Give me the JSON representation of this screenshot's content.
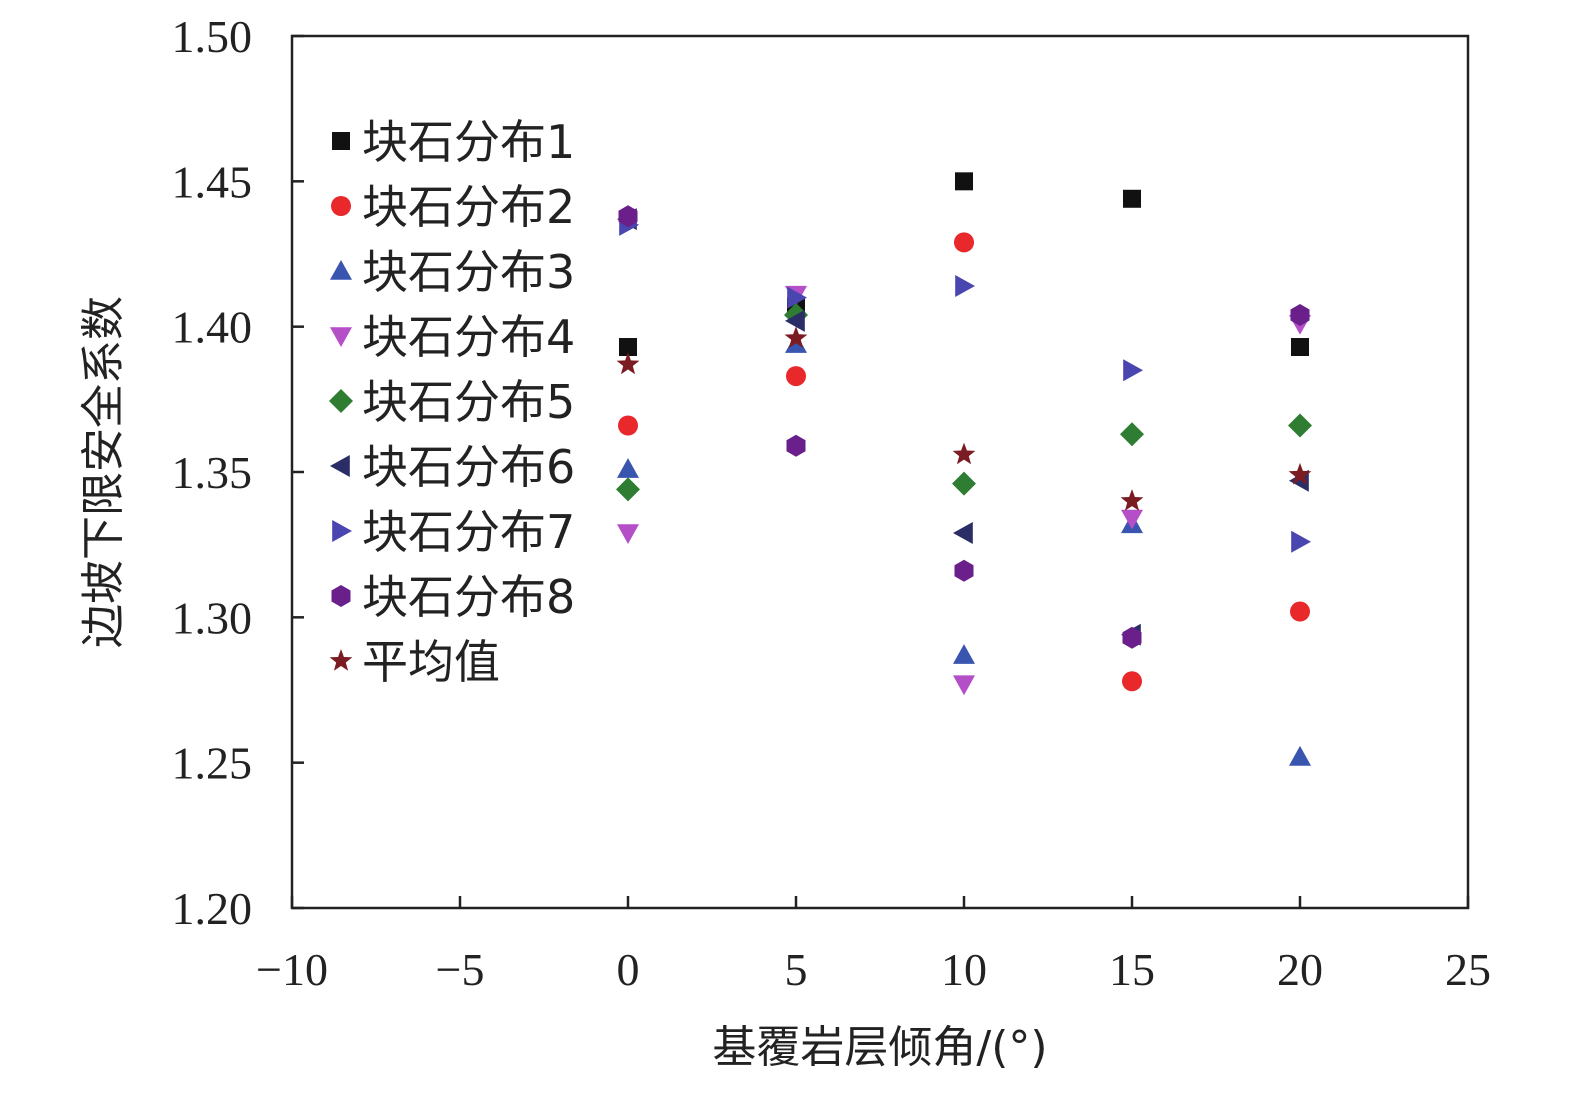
{
  "chart_data": {
    "type": "scatter",
    "xlabel": "基覆岩层倾角/(°)",
    "ylabel": "边坡下限安全系数",
    "xlim": [
      -10,
      25
    ],
    "ylim": [
      1.2,
      1.5
    ],
    "xticks": [
      -10,
      -5,
      0,
      5,
      10,
      15,
      20,
      25
    ],
    "xtick_labels": [
      "−10",
      "−5",
      "0",
      "5",
      "10",
      "15",
      "20",
      "25"
    ],
    "yticks": [
      1.2,
      1.25,
      1.3,
      1.35,
      1.4,
      1.45,
      1.5
    ],
    "ytick_labels": [
      "1.20",
      "1.25",
      "1.30",
      "1.35",
      "1.40",
      "1.45",
      "1.50"
    ],
    "grid": false,
    "legend_position": "top-left",
    "x": [
      0,
      5,
      10,
      15,
      20
    ],
    "series": [
      {
        "name": "块石分布1",
        "marker": "square",
        "color": "#111111",
        "values": [
          1.393,
          1.407,
          1.45,
          1.444,
          1.393
        ]
      },
      {
        "name": "块石分布2",
        "marker": "circle",
        "color": "#e8282b",
        "values": [
          1.366,
          1.383,
          1.429,
          1.278,
          1.302
        ]
      },
      {
        "name": "块石分布3",
        "marker": "triangle-up",
        "color": "#3a55b0",
        "values": [
          1.351,
          1.394,
          1.287,
          1.332,
          1.252
        ]
      },
      {
        "name": "块石分布4",
        "marker": "triangle-down",
        "color": "#b44fc8",
        "values": [
          1.329,
          1.411,
          1.277,
          1.334,
          1.401
        ]
      },
      {
        "name": "块石分布5",
        "marker": "diamond",
        "color": "#2e7d32",
        "values": [
          1.344,
          1.404,
          1.346,
          1.363,
          1.366
        ]
      },
      {
        "name": "块石分布6",
        "marker": "triangle-left",
        "color": "#2b2d66",
        "values": [
          1.437,
          1.402,
          1.329,
          1.294,
          1.347
        ]
      },
      {
        "name": "块石分布7",
        "marker": "triangle-right",
        "color": "#4a46b0",
        "values": [
          1.435,
          1.41,
          1.414,
          1.385,
          1.326
        ]
      },
      {
        "name": "块石分布8",
        "marker": "hexagon",
        "color": "#6a1f8a",
        "values": [
          1.438,
          1.359,
          1.316,
          1.293,
          1.404
        ]
      },
      {
        "name": "平均值",
        "marker": "star",
        "color": "#7a1c22",
        "values": [
          1.387,
          1.396,
          1.356,
          1.34,
          1.349
        ]
      }
    ]
  }
}
